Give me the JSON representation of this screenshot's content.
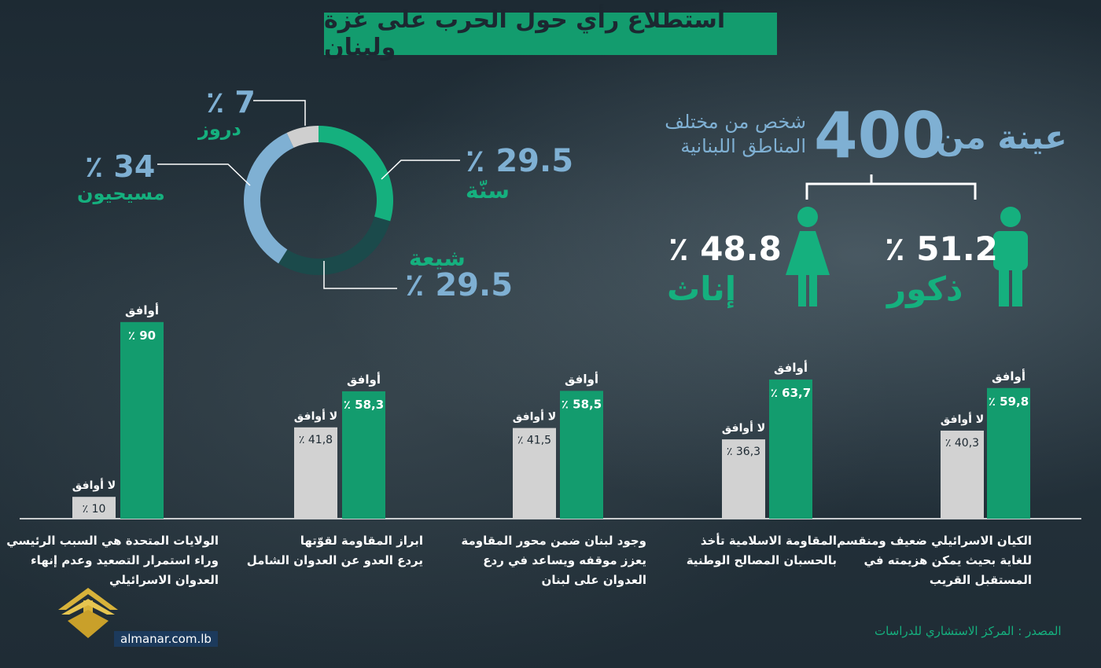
{
  "title": "استطلاع رأي حول الحرب على غزة ولبنان",
  "sample": {
    "title": "عينة من",
    "count": "400",
    "description": "شخص من مختلف المناطق اللبنانية"
  },
  "gender": {
    "male_label": "ذكور",
    "male_pct": "٪ 51.2",
    "female_label": "إناث",
    "female_pct": "٪ 48.8"
  },
  "sects": {
    "druze": {
      "label": "دروز",
      "pct": "٪ 7"
    },
    "christians": {
      "label": "مسيحيون",
      "pct": "٪ 34"
    },
    "sunni": {
      "label": "سنّة",
      "pct": "٪ 29.5"
    },
    "shia": {
      "label": "شيعة",
      "pct": "٪ 29.5"
    }
  },
  "colors": {
    "green": "#15b07e",
    "blue": "#7fb0d3",
    "dark_green": "#1b4a4b",
    "gray": "#cfcfcf",
    "title_bg": "#139c6e"
  },
  "chart_data": [
    {
      "type": "pie",
      "labels": [
        "سنّة",
        "شيعة",
        "مسيحيون",
        "دروز"
      ],
      "values": [
        29.5,
        29.5,
        34,
        7
      ],
      "colors": [
        "#15b07e",
        "#1b4a4b",
        "#7fb0d3",
        "#cfcfcf"
      ]
    },
    {
      "type": "bar",
      "ylim": [
        0,
        100
      ],
      "legend_agree": "أوافق",
      "legend_disagree": "لا أوافق",
      "categories": [
        "الكيان الاسرائيلي ضعيف ومنقسم للغاية بحيث يمكن هزيمته في المستقبل القريب",
        "المقاومة الاسلامية تأخذ بالحسبان المصالح الوطنية",
        "وجود لبنان ضمن محور المقاومة يعزز موقفه ويساعد في ردع العدوان على لبنان",
        "ابراز المقاومة لقوّتها يردع العدو عن العدوان الشامل",
        "الولايات المتحدة هي السبب الرئيسي وراء استمرار التصعيد وعدم إنهاء العدوان الاسرائيلي"
      ],
      "category_lines": [
        [
          "الكيان الاسرائيلي ضعيف ومنقسم",
          "للغاية بحيث يمكن هزيمته في",
          "المستقبل القريب"
        ],
        [
          "المقاومة الاسلامية تأخذ",
          "بالحسبان المصالح الوطنية"
        ],
        [
          "وجود لبنان ضمن محور المقاومة",
          "يعزز موقفه ويساعد في ردع",
          "العدوان على لبنان"
        ],
        [
          "ابراز المقاومة لقوّتها",
          "يردع العدو عن العدوان الشامل"
        ],
        [
          "الولايات المتحدة هي السبب الرئيسي",
          "وراء استمرار التصعيد وعدم إنهاء",
          "العدوان الاسرائيلي"
        ]
      ],
      "series": [
        {
          "name": "أوافق",
          "values": [
            59.8,
            63.7,
            58.5,
            58.3,
            90
          ],
          "labels": [
            "٪ 59,8",
            "٪ 63,7",
            "٪ 58,5",
            "٪ 58,3",
            "٪ 90"
          ],
          "color": "#139c6e"
        },
        {
          "name": "لا أوافق",
          "values": [
            40.3,
            36.3,
            41.5,
            41.8,
            10
          ],
          "labels": [
            "٪ 40,3",
            "٪ 36,3",
            "٪ 41,5",
            "٪ 41,8",
            "٪ 10"
          ],
          "color": "#d2d2d2"
        }
      ]
    }
  ],
  "source": "المصدر : المركز الاستشاري للدراسات",
  "site": "almanar.com.lb"
}
